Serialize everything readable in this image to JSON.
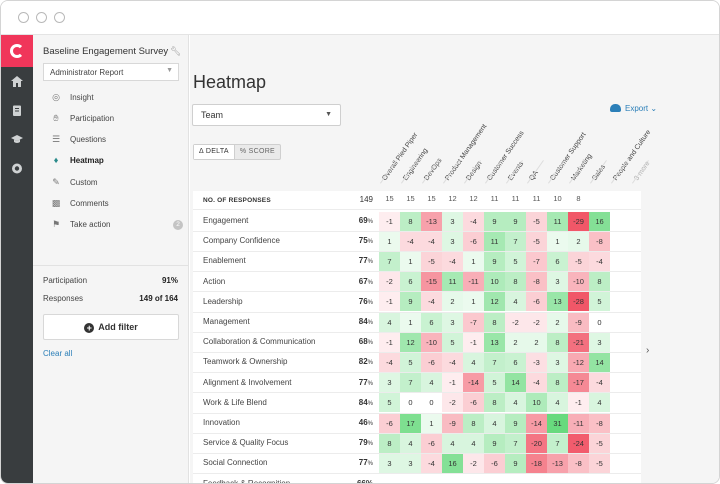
{
  "window": {
    "title": ""
  },
  "sidebar": {
    "survey_title": "Baseline Engagement Survey",
    "report": "Administrator Report",
    "nav": [
      {
        "label": "Insight",
        "icon": "lightbulb-icon",
        "active": false
      },
      {
        "label": "Participation",
        "icon": "hand-icon",
        "active": false
      },
      {
        "label": "Questions",
        "icon": "list-icon",
        "active": false
      },
      {
        "label": "Heatmap",
        "icon": "flame-icon",
        "active": true
      },
      {
        "label": "Custom",
        "icon": "pencil-icon",
        "active": false
      },
      {
        "label": "Comments",
        "icon": "comment-icon",
        "active": false
      },
      {
        "label": "Take action",
        "icon": "flag-icon",
        "active": false,
        "badge": "2"
      }
    ],
    "participation_label": "Participation",
    "participation_value": "91%",
    "responses_label": "Responses",
    "responses_value": "149 of 164",
    "add_filter": "Add filter",
    "clear_all": "Clear all"
  },
  "main": {
    "title": "Heatmap",
    "team_select": "Team",
    "export": "Export",
    "toggle": [
      "Δ DELTA",
      "% SCORE"
    ],
    "columns": [
      "Overall Pied Piper",
      "Engineering",
      "DevOps",
      "Product Management",
      "Design",
      "Customer Success",
      "Events",
      "QA",
      "Customer Support",
      "Marketing",
      "Sales",
      "People and Culture",
      "3 more"
    ],
    "responses_row": {
      "label": "NO. OF RESPONSES",
      "total": "149",
      "counts": [
        "15",
        "15",
        "15",
        "12",
        "12",
        "11",
        "11",
        "11",
        "10",
        "8"
      ]
    },
    "rows": [
      {
        "label": "Engagement",
        "score": "69",
        "values": [
          -1,
          8,
          -13,
          3,
          -4,
          9,
          9,
          -5,
          11,
          -29,
          16
        ]
      },
      {
        "label": "Company Confidence",
        "score": "75",
        "values": [
          1,
          -4,
          -4,
          3,
          -6,
          11,
          7,
          -5,
          1,
          2,
          -8
        ]
      },
      {
        "label": "Enablement",
        "score": "77",
        "values": [
          7,
          1,
          -5,
          -4,
          1,
          9,
          5,
          -7,
          6,
          -5,
          -4
        ]
      },
      {
        "label": "Action",
        "score": "67",
        "values": [
          -2,
          6,
          -15,
          11,
          -11,
          10,
          8,
          -8,
          3,
          -10,
          8
        ]
      },
      {
        "label": "Leadership",
        "score": "76",
        "values": [
          -1,
          9,
          -4,
          2,
          1,
          12,
          4,
          -6,
          13,
          -28,
          5
        ]
      },
      {
        "label": "Management",
        "score": "84",
        "values": [
          4,
          1,
          6,
          3,
          -7,
          8,
          -2,
          -2,
          2,
          -9,
          0
        ]
      },
      {
        "label": "Collaboration & Communication",
        "score": "68",
        "values": [
          -1,
          12,
          -10,
          5,
          -1,
          13,
          2,
          2,
          8,
          -21,
          3
        ]
      },
      {
        "label": "Teamwork & Ownership",
        "score": "82",
        "values": [
          -4,
          5,
          -6,
          -4,
          4,
          7,
          6,
          -3,
          3,
          -12,
          14
        ]
      },
      {
        "label": "Alignment & Involvement",
        "score": "77",
        "values": [
          3,
          7,
          4,
          -1,
          -14,
          5,
          14,
          -4,
          8,
          -17,
          -4
        ]
      },
      {
        "label": "Work & Life Blend",
        "score": "84",
        "values": [
          5,
          0,
          0,
          -2,
          -6,
          8,
          4,
          10,
          4,
          -1,
          4
        ]
      },
      {
        "label": "Innovation",
        "score": "46",
        "values": [
          -6,
          17,
          1,
          -9,
          8,
          4,
          9,
          -14,
          31,
          -11,
          -8
        ]
      },
      {
        "label": "Service & Quality Focus",
        "score": "79",
        "values": [
          8,
          4,
          -6,
          4,
          4,
          9,
          7,
          -20,
          7,
          -24,
          -5
        ]
      },
      {
        "label": "Social Connection",
        "score": "77",
        "values": [
          3,
          3,
          -4,
          16,
          -2,
          -6,
          9,
          -18,
          -13,
          -8,
          -5
        ]
      }
    ],
    "partial_row_label": "Feedback & Recognition",
    "partial_row_score": "66"
  },
  "colors": {
    "accent": "#f0365a",
    "rail": "#393d3f",
    "link": "#2b7fb8",
    "positive": "#3ecf5a",
    "negative": "#ef3b4f"
  }
}
